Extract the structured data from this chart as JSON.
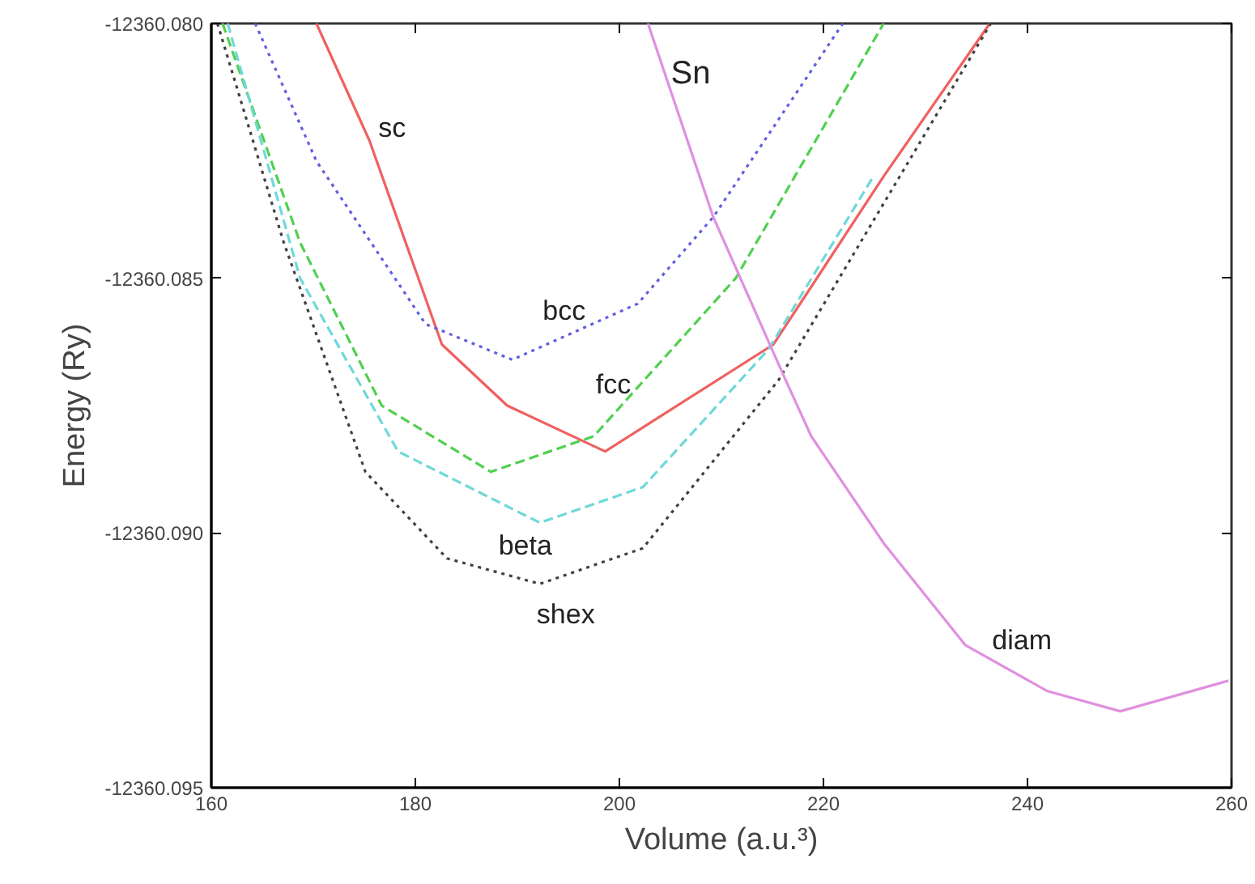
{
  "chart_data": {
    "type": "line",
    "title": "Sn",
    "xlabel": "Volume (a.u.³)",
    "ylabel": "Energy (Ry)",
    "grid": false,
    "legend": false,
    "xlim": [
      160,
      260
    ],
    "ylim": [
      -12360.095,
      -12360.08
    ],
    "xticks": [
      160,
      180,
      200,
      220,
      240,
      260
    ],
    "yticks": [
      {
        "value": -12360.095,
        "label": "-12360.095"
      },
      {
        "value": -12360.09,
        "label": "-12360.090"
      },
      {
        "value": -12360.085,
        "label": "-12360.085"
      },
      {
        "value": -12360.08,
        "label": "-12360.080"
      }
    ],
    "series": [
      {
        "name": "sc",
        "color": "#f06060",
        "line_style": "solid",
        "x": [
          170.3,
          175.5,
          182.6,
          189.0,
          198.6,
          215.1,
          225.9,
          236.3
        ],
        "values": [
          -12360.08,
          -12360.0823,
          -12360.0863,
          -12360.0875,
          -12360.0884,
          -12360.0863,
          -12360.083,
          -12360.08
        ]
      },
      {
        "name": "bcc",
        "color": "#6060e0",
        "line_style": "dotted",
        "x": [
          164.3,
          170.3,
          181.0,
          189.5,
          201.8,
          209.2,
          221.9
        ],
        "values": [
          -12360.08,
          -12360.0827,
          -12360.0859,
          -12360.0866,
          -12360.0855,
          -12360.0838,
          -12360.08
        ]
      },
      {
        "name": "fcc",
        "color": "#50d050",
        "line_style": "dashed",
        "x": [
          161.1,
          168.7,
          176.7,
          187.4,
          197.5,
          211.4,
          225.9
        ],
        "values": [
          -12360.08,
          -12360.0843,
          -12360.0875,
          -12360.0888,
          -12360.0881,
          -12360.085,
          -12360.08
        ]
      },
      {
        "name": "beta",
        "color": "#70d8d8",
        "line_style": "dashed",
        "x": [
          161.6,
          168.7,
          178.3,
          192.2,
          202.3,
          214.6,
          224.9
        ],
        "values": [
          -12360.08,
          -12360.085,
          -12360.0884,
          -12360.0898,
          -12360.0891,
          -12360.0864,
          -12360.083
        ]
      },
      {
        "name": "shex",
        "color": "#404040",
        "line_style": "dotted",
        "x": [
          160.6,
          167.1,
          175.1,
          183.1,
          192.2,
          202.3,
          215.6,
          236.4
        ],
        "values": [
          -12360.08,
          -12360.0843,
          -12360.0888,
          -12360.0905,
          -12360.091,
          -12360.0903,
          -12360.087,
          -12360.08
        ]
      },
      {
        "name": "diam",
        "color": "#e090e0",
        "line_style": "solid",
        "x": [
          202.8,
          209.2,
          216.3,
          218.8,
          225.9,
          233.9,
          241.9,
          249.1,
          259.7
        ],
        "values": [
          -12360.08,
          -12360.0838,
          -12360.087,
          -12360.0881,
          -12360.0902,
          -12360.0922,
          -12360.0931,
          -12360.0935,
          -12360.0929
        ]
      }
    ]
  }
}
